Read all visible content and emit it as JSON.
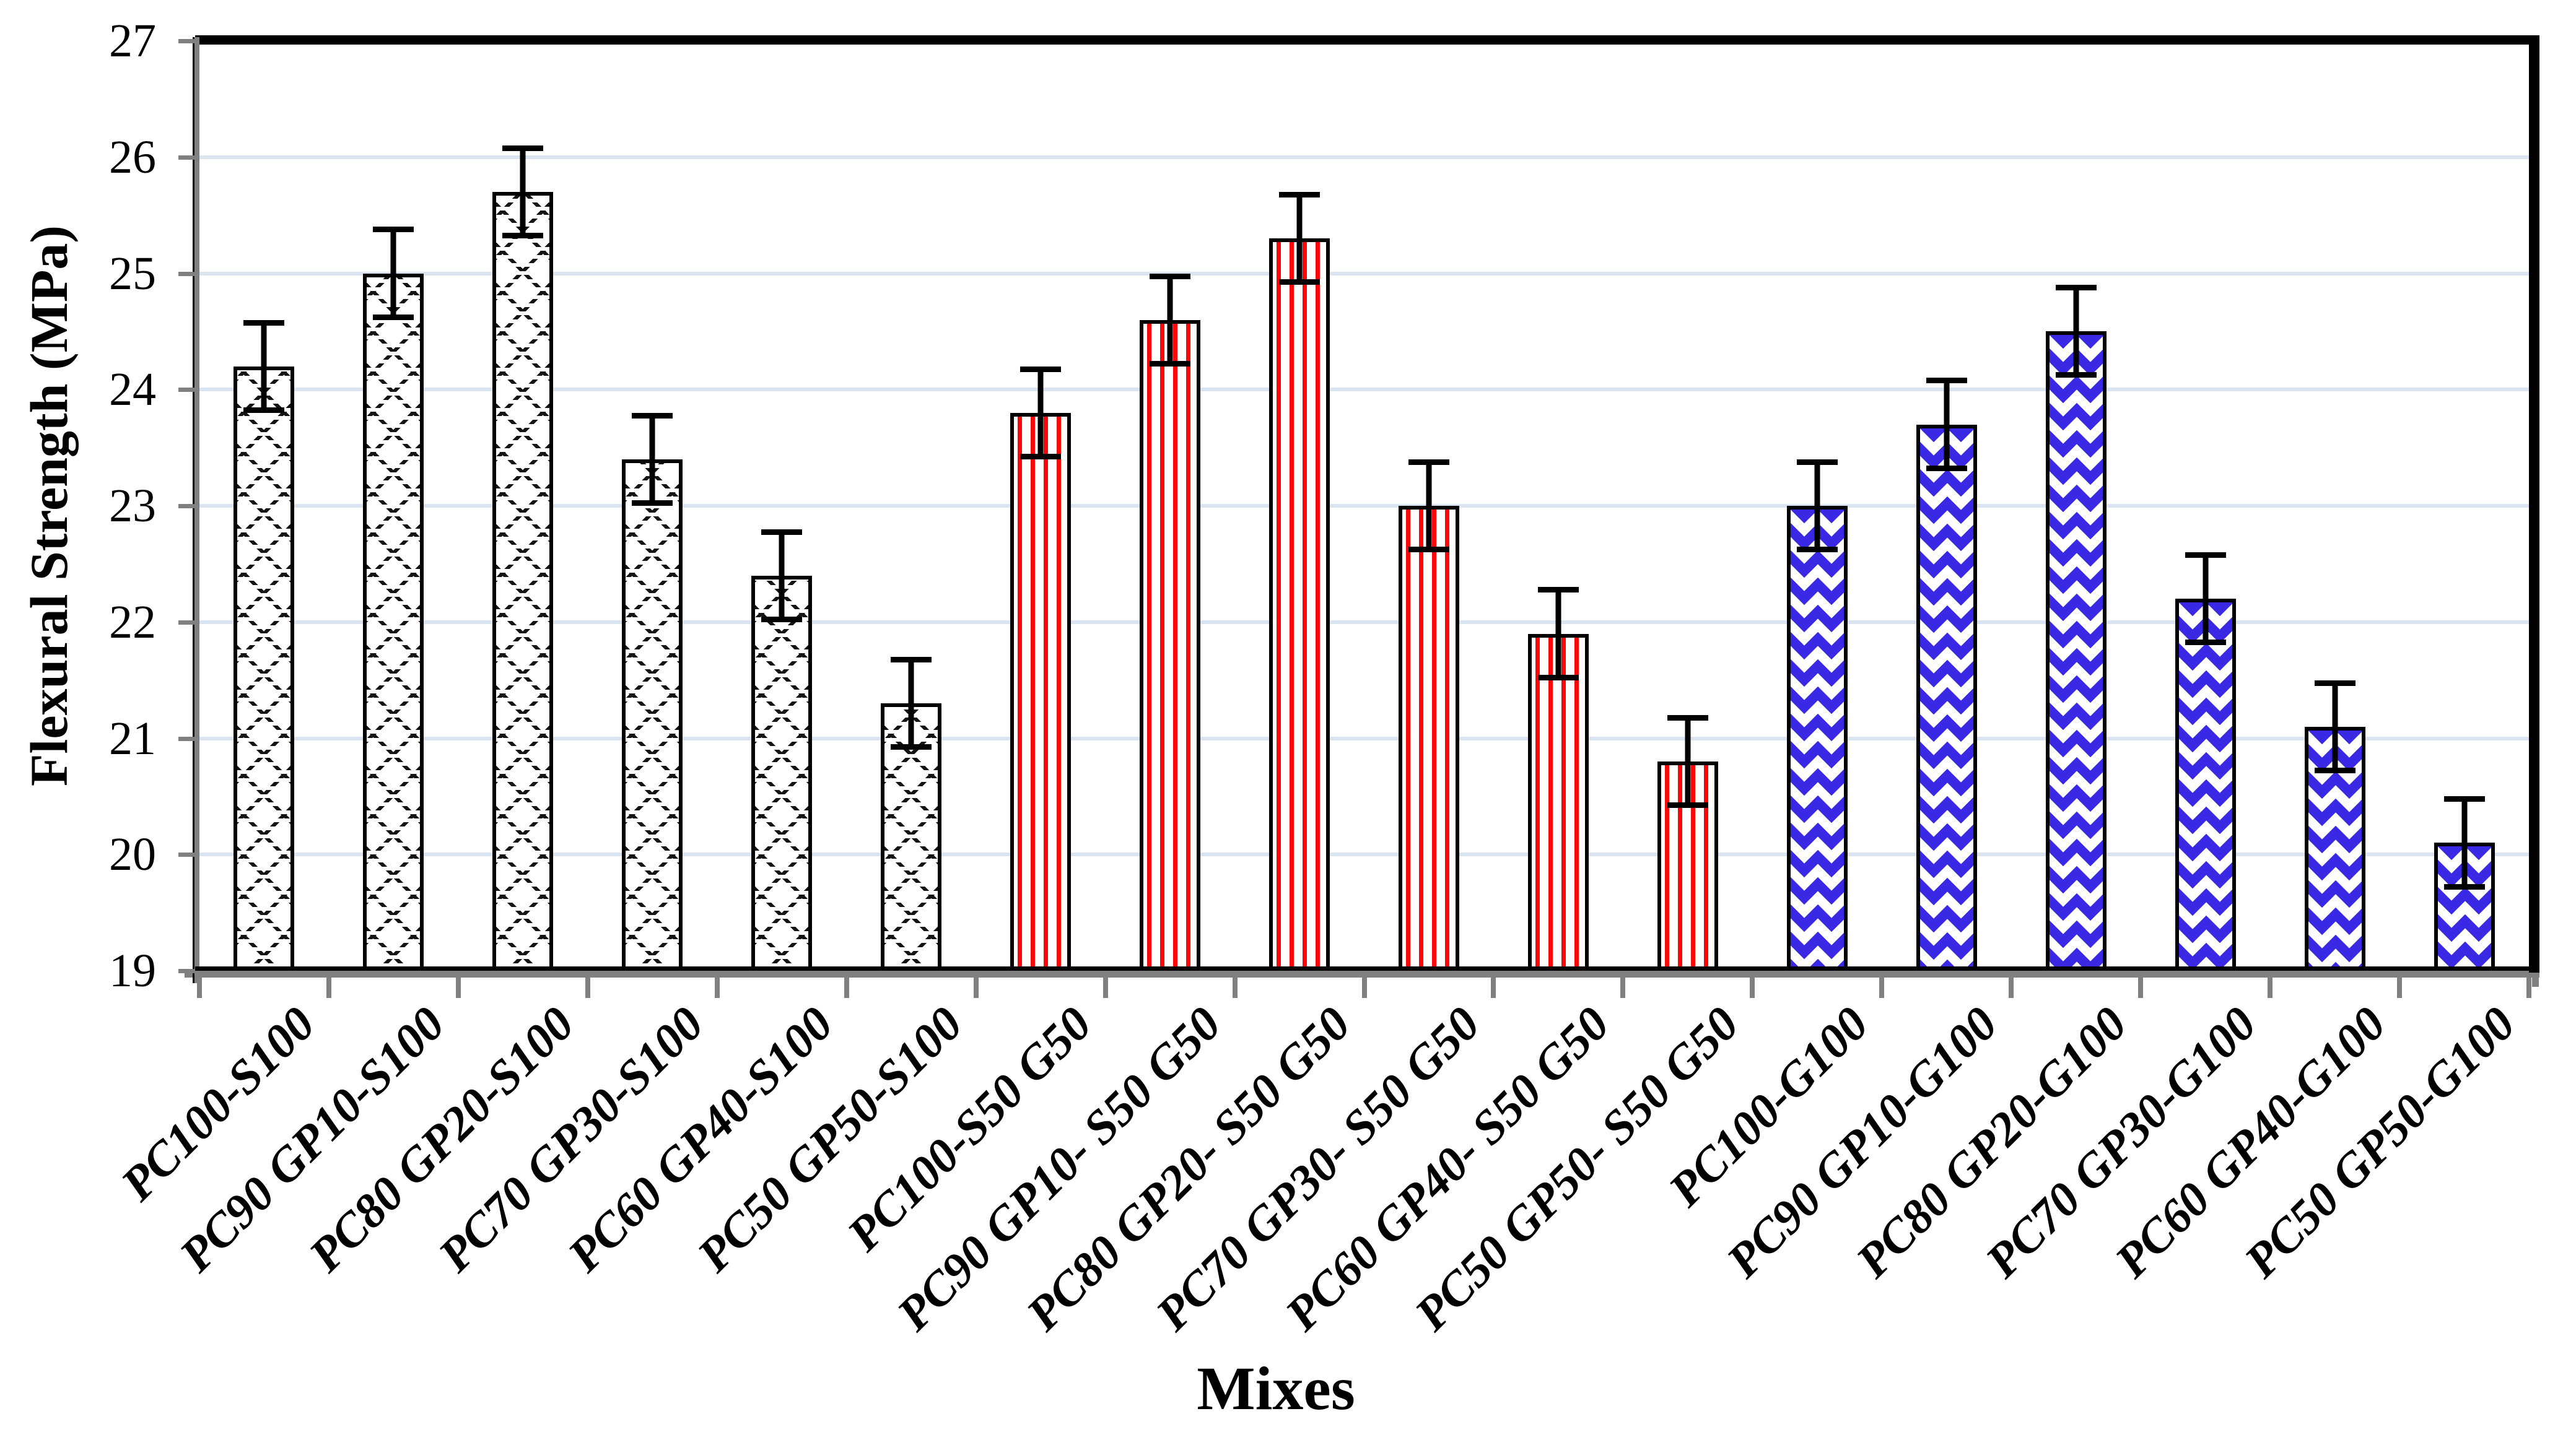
{
  "chart_data": {
    "type": "bar",
    "title": "",
    "xlabel": "Mixes",
    "ylabel": "Flexural Strength (MPa)",
    "ylim": [
      19,
      27
    ],
    "yticks": [
      27,
      26,
      25,
      24,
      23,
      22,
      21,
      20,
      19
    ],
    "grid": "horizontal-light-blue",
    "legend": "none",
    "categories": [
      "PC100-S100",
      "PC90 GP10-S100",
      "PC80 GP20-S100",
      "PC70 GP30-S100",
      "PC60 GP40-S100",
      "PC50 GP50-S100",
      "PC100-S50 G50",
      "PC90 GP10- S50 G50",
      "PC80 GP20- S50 G50",
      "PC70 GP30- S50 G50",
      "PC60 GP40- S50 G50",
      "PC50 GP50- S50 G50",
      "PC100-G100",
      "PC90 GP10-G100",
      "PC80 GP20-G100",
      "PC70 GP30-G100",
      "PC60 GP40-G100",
      "PC50 GP50-G100"
    ],
    "bars": [
      {
        "label": "PC100-S100",
        "value": 24.2,
        "error": 0.4,
        "pattern": "hatch"
      },
      {
        "label": "PC90 GP10-S100",
        "value": 25.0,
        "error": 0.4,
        "pattern": "hatch"
      },
      {
        "label": "PC80 GP20-S100",
        "value": 25.7,
        "error": 0.4,
        "pattern": "hatch"
      },
      {
        "label": "PC70 GP30-S100",
        "value": 23.4,
        "error": 0.4,
        "pattern": "hatch"
      },
      {
        "label": "PC60 GP40-S100",
        "value": 22.4,
        "error": 0.4,
        "pattern": "hatch"
      },
      {
        "label": "PC50 GP50-S100",
        "value": 21.3,
        "error": 0.4,
        "pattern": "hatch"
      },
      {
        "label": "PC100-S50 G50",
        "value": 23.8,
        "error": 0.4,
        "pattern": "stripes"
      },
      {
        "label": "PC90 GP10- S50 G50",
        "value": 24.6,
        "error": 0.4,
        "pattern": "stripes"
      },
      {
        "label": "PC80 GP20- S50 G50",
        "value": 25.3,
        "error": 0.4,
        "pattern": "stripes"
      },
      {
        "label": "PC70 GP30- S50 G50",
        "value": 23.0,
        "error": 0.4,
        "pattern": "stripes"
      },
      {
        "label": "PC60 GP40- S50 G50",
        "value": 21.9,
        "error": 0.4,
        "pattern": "stripes"
      },
      {
        "label": "PC50 GP50- S50 G50",
        "value": 20.8,
        "error": 0.4,
        "pattern": "stripes"
      },
      {
        "label": "PC100-G100",
        "value": 23.0,
        "error": 0.4,
        "pattern": "diamonds"
      },
      {
        "label": "PC90 GP10-G100",
        "value": 23.7,
        "error": 0.4,
        "pattern": "diamonds"
      },
      {
        "label": "PC80 GP20-G100",
        "value": 24.5,
        "error": 0.4,
        "pattern": "diamonds"
      },
      {
        "label": "PC70 GP30-G100",
        "value": 22.2,
        "error": 0.4,
        "pattern": "diamonds"
      },
      {
        "label": "PC60 GP40-G100",
        "value": 21.1,
        "error": 0.4,
        "pattern": "diamonds"
      },
      {
        "label": "PC50 GP50-G100",
        "value": 20.1,
        "error": 0.4,
        "pattern": "diamonds"
      }
    ],
    "pattern_styles": {
      "hatch": {
        "description": "black dotted diagonal crosshatch on white",
        "color": "#141414"
      },
      "stripes": {
        "description": "red vertical stripes on white",
        "color": "#fb0707"
      },
      "diamonds": {
        "description": "blue diamond checker on white",
        "color": "#3928e4"
      }
    },
    "colors": {
      "gridline": "#dbe5f1",
      "axis_gray": "#808080",
      "border_black": "#000000",
      "error_bar": "#000000",
      "background": "#ffffff"
    }
  }
}
